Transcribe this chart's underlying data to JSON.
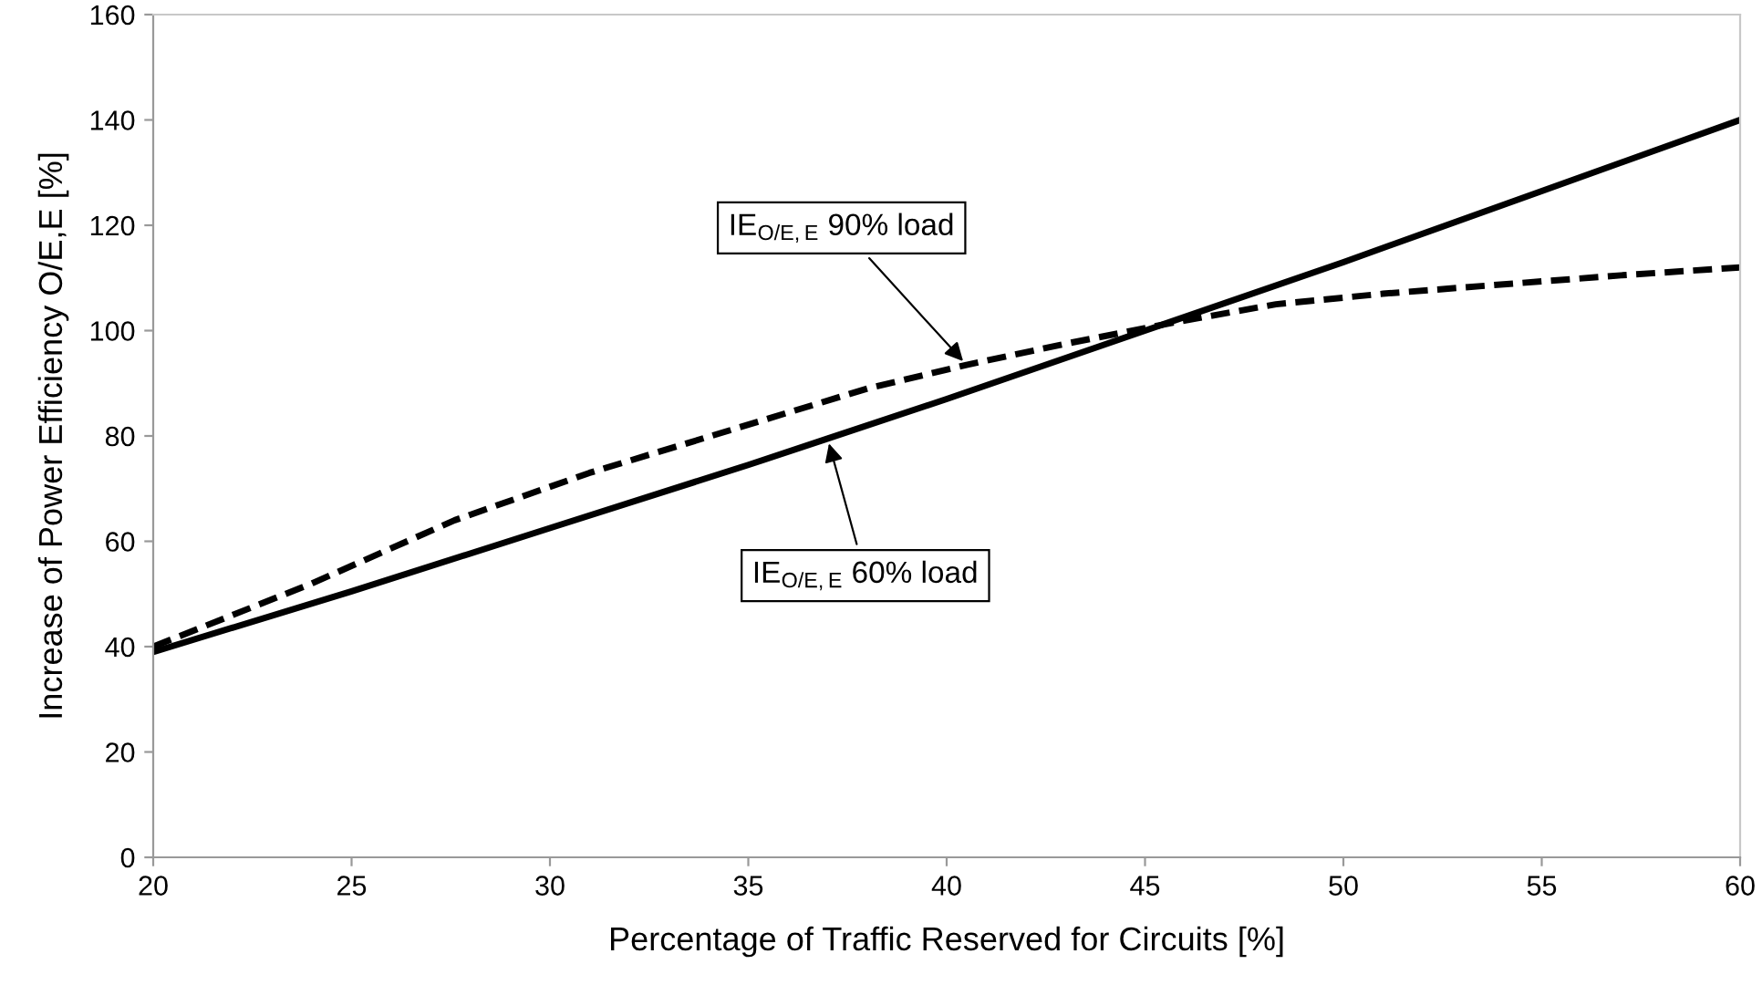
{
  "chart_data": {
    "type": "line",
    "xlabel": "Percentage of Traffic Reserved for Circuits [%]",
    "ylabel": "Increase of Power Efficiency O/E,E [%]",
    "xlim": [
      20,
      60
    ],
    "xticks": [
      20,
      25,
      30,
      35,
      40,
      45,
      50,
      55,
      60
    ],
    "ylim": [
      0,
      160
    ],
    "yticks": [
      0,
      20,
      40,
      60,
      80,
      100,
      120,
      140,
      160
    ],
    "grid": false,
    "legend": false,
    "series": [
      {
        "color": "#000000",
        "line_style": "solid",
        "x": [
          20,
          25,
          30,
          35,
          37,
          40,
          45,
          50,
          55,
          60
        ],
        "values": [
          39,
          50.5,
          62.5,
          74.5,
          79.5,
          87,
          100,
          113,
          126.5,
          140
        ]
      },
      {
        "color": "#000000",
        "line_style": "dashed",
        "x": [
          20,
          24,
          27.6,
          31,
          34.5,
          38,
          40.5,
          43,
          45.7,
          48.3,
          51,
          54.4,
          57,
          60
        ],
        "values": [
          40,
          52,
          64,
          73,
          81,
          89,
          93.5,
          97.5,
          101.5,
          105,
          107,
          109,
          110.5,
          112
        ]
      }
    ],
    "annotations": [
      {
        "text": "IE$_{O/E,E}$ 90% load",
        "x": 40.5,
        "y": 93.5
      },
      {
        "text": "IE$_{O/E,E}$ 60% load",
        "x": 37,
        "y": 79.5
      }
    ]
  }
}
